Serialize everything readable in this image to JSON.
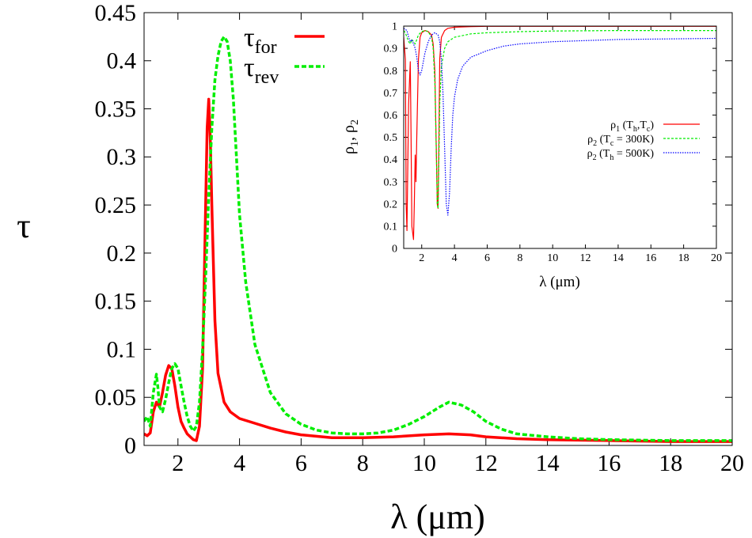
{
  "chart_data": [
    {
      "type": "line",
      "title": "",
      "xlabel": "λ (μm)",
      "ylabel": "τ",
      "xlim": [
        0.9,
        20
      ],
      "ylim": [
        0,
        0.45
      ],
      "xticks": [
        2,
        4,
        6,
        8,
        10,
        12,
        14,
        16,
        18,
        20
      ],
      "xtick_labels": [
        "2",
        "4",
        "6",
        "8",
        "10",
        "12",
        "14",
        "16",
        "18",
        "20"
      ],
      "yticks": [
        0,
        0.05,
        0.1,
        0.15,
        0.2,
        0.25,
        0.3,
        0.35,
        0.4,
        0.45
      ],
      "ytick_labels": [
        "0",
        "0.05",
        "0.1",
        "0.15",
        "0.2",
        "0.25",
        "0.3",
        "0.35",
        "0.4",
        "0.45"
      ],
      "legend_position": "top-center",
      "series": [
        {
          "name": "τ_for",
          "label_main": "τ",
          "label_sub": "for",
          "color": "#ff0000",
          "dash": "solid",
          "x": [
            0.9,
            1.0,
            1.1,
            1.2,
            1.3,
            1.4,
            1.5,
            1.6,
            1.7,
            1.8,
            1.9,
            2.0,
            2.1,
            2.2,
            2.3,
            2.4,
            2.5,
            2.6,
            2.7,
            2.8,
            2.9,
            2.95,
            3.0,
            3.05,
            3.1,
            3.2,
            3.3,
            3.5,
            3.7,
            4.0,
            4.5,
            5.0,
            5.5,
            6.0,
            7.0,
            8.0,
            9.0,
            10.0,
            10.8,
            11.5,
            12.0,
            13.0,
            14.0,
            16.0,
            18.0,
            20.0
          ],
          "y": [
            0.012,
            0.01,
            0.013,
            0.035,
            0.045,
            0.04,
            0.055,
            0.073,
            0.083,
            0.08,
            0.062,
            0.04,
            0.025,
            0.018,
            0.012,
            0.009,
            0.006,
            0.005,
            0.02,
            0.08,
            0.25,
            0.33,
            0.36,
            0.32,
            0.25,
            0.13,
            0.075,
            0.045,
            0.035,
            0.028,
            0.023,
            0.018,
            0.014,
            0.011,
            0.008,
            0.008,
            0.009,
            0.011,
            0.012,
            0.011,
            0.009,
            0.007,
            0.006,
            0.005,
            0.004,
            0.004
          ]
        },
        {
          "name": "τ_rev",
          "label_main": "τ",
          "label_sub": "rev",
          "color": "#00ee00",
          "dash": "dashed",
          "x": [
            0.9,
            1.0,
            1.1,
            1.2,
            1.3,
            1.35,
            1.4,
            1.5,
            1.6,
            1.7,
            1.8,
            1.9,
            2.0,
            2.1,
            2.2,
            2.3,
            2.4,
            2.5,
            2.6,
            2.7,
            2.8,
            2.9,
            3.0,
            3.1,
            3.2,
            3.3,
            3.4,
            3.5,
            3.6,
            3.7,
            3.8,
            3.9,
            4.0,
            4.2,
            4.5,
            5.0,
            5.5,
            6.0,
            6.5,
            7.0,
            7.5,
            8.0,
            8.5,
            9.0,
            9.5,
            10.0,
            10.5,
            10.8,
            11.2,
            11.6,
            12.0,
            12.5,
            13.0,
            14.0,
            15.0,
            16.0,
            18.0,
            20.0
          ],
          "y": [
            0.025,
            0.03,
            0.02,
            0.055,
            0.074,
            0.06,
            0.04,
            0.035,
            0.048,
            0.065,
            0.08,
            0.085,
            0.08,
            0.062,
            0.045,
            0.03,
            0.02,
            0.015,
            0.02,
            0.045,
            0.1,
            0.175,
            0.26,
            0.33,
            0.38,
            0.405,
            0.42,
            0.425,
            0.42,
            0.4,
            0.36,
            0.3,
            0.24,
            0.17,
            0.105,
            0.055,
            0.033,
            0.022,
            0.016,
            0.013,
            0.012,
            0.012,
            0.013,
            0.016,
            0.022,
            0.03,
            0.04,
            0.045,
            0.042,
            0.035,
            0.025,
            0.017,
            0.012,
            0.009,
            0.007,
            0.006,
            0.005,
            0.005
          ]
        }
      ]
    },
    {
      "type": "line",
      "title": "",
      "xlabel": "λ (μm)",
      "ylabel": "ρ1, ρ2",
      "ylabel_parts": [
        "ρ",
        "1",
        ", ρ",
        "2"
      ],
      "xlim": [
        0.9,
        20
      ],
      "ylim": [
        0,
        1
      ],
      "xticks": [
        2,
        4,
        6,
        8,
        10,
        12,
        14,
        16,
        18,
        20
      ],
      "xtick_labels": [
        "2",
        "4",
        "6",
        "8",
        "10",
        "12",
        "14",
        "16",
        "18",
        "20"
      ],
      "yticks": [
        0,
        0.1,
        0.2,
        0.3,
        0.4,
        0.5,
        0.6,
        0.7,
        0.8,
        0.9,
        1
      ],
      "ytick_labels": [
        "0",
        "0.1",
        "0.2",
        "0.3",
        "0.4",
        "0.5",
        "0.6",
        "0.7",
        "0.8",
        "0.9",
        "1"
      ],
      "legend_position": "center-right",
      "series": [
        {
          "name": "ρ1 (Th,Tc)",
          "label_parts": [
            "ρ",
            "1",
            " (T",
            "h",
            ",T",
            "c",
            ")"
          ],
          "color": "#ff0000",
          "dash": "solid",
          "x": [
            0.9,
            1.0,
            1.05,
            1.1,
            1.2,
            1.3,
            1.35,
            1.4,
            1.5,
            1.55,
            1.6,
            1.65,
            1.7,
            1.8,
            1.9,
            2.0,
            2.2,
            2.4,
            2.6,
            2.7,
            2.8,
            2.9,
            2.95,
            3.0,
            3.05,
            3.1,
            3.2,
            3.4,
            3.6,
            4.0,
            5.0,
            6.0,
            8.0,
            10.0,
            12.0,
            14.0,
            16.0,
            18.0,
            20.0
          ],
          "y": [
            0.95,
            0.85,
            0.2,
            0.08,
            0.65,
            0.84,
            0.5,
            0.1,
            0.04,
            0.2,
            0.42,
            0.3,
            0.5,
            0.85,
            0.95,
            0.97,
            0.98,
            0.975,
            0.96,
            0.92,
            0.8,
            0.4,
            0.2,
            0.18,
            0.5,
            0.85,
            0.95,
            0.98,
            0.99,
            0.995,
            0.998,
            0.999,
            0.999,
            0.999,
            0.999,
            0.999,
            0.999,
            0.999,
            0.999
          ]
        },
        {
          "name": "ρ2 (Tc = 300K)",
          "label_parts": [
            "ρ",
            "2",
            " (T",
            "c",
            " = 300K)"
          ],
          "color": "#00ee00",
          "dash": "dashed",
          "x": [
            0.9,
            1.0,
            1.1,
            1.2,
            1.3,
            1.4,
            1.5,
            1.6,
            1.7,
            1.8,
            2.0,
            2.2,
            2.4,
            2.6,
            2.7,
            2.8,
            2.9,
            2.95,
            3.0,
            3.05,
            3.1,
            3.2,
            3.4,
            3.6,
            4.0,
            5.0,
            6.0,
            8.0,
            10.0,
            14.0,
            20.0
          ],
          "y": [
            0.98,
            0.97,
            0.95,
            0.93,
            0.92,
            0.94,
            0.93,
            0.92,
            0.94,
            0.96,
            0.975,
            0.98,
            0.975,
            0.95,
            0.9,
            0.75,
            0.4,
            0.2,
            0.18,
            0.4,
            0.65,
            0.82,
            0.9,
            0.93,
            0.95,
            0.965,
            0.97,
            0.975,
            0.978,
            0.98,
            0.98
          ]
        },
        {
          "name": "ρ2 (Th = 500K)",
          "label_parts": [
            "ρ",
            "2",
            " (T",
            "h",
            " = 500K)"
          ],
          "color": "#0000ff",
          "dash": "dotted",
          "x": [
            0.9,
            1.0,
            1.1,
            1.2,
            1.3,
            1.4,
            1.5,
            1.6,
            1.7,
            1.8,
            1.9,
            2.0,
            2.2,
            2.4,
            2.6,
            2.8,
            3.0,
            3.1,
            3.2,
            3.3,
            3.4,
            3.5,
            3.6,
            3.7,
            3.8,
            3.9,
            4.0,
            4.2,
            4.5,
            5.0,
            6.0,
            7.0,
            8.0,
            10.0,
            14.0,
            20.0
          ],
          "y": [
            0.99,
            0.985,
            0.98,
            0.95,
            0.93,
            0.94,
            0.92,
            0.9,
            0.86,
            0.8,
            0.78,
            0.8,
            0.88,
            0.93,
            0.96,
            0.97,
            0.96,
            0.93,
            0.85,
            0.7,
            0.45,
            0.2,
            0.15,
            0.25,
            0.45,
            0.6,
            0.68,
            0.76,
            0.82,
            0.86,
            0.89,
            0.91,
            0.92,
            0.93,
            0.94,
            0.945
          ]
        }
      ]
    }
  ]
}
